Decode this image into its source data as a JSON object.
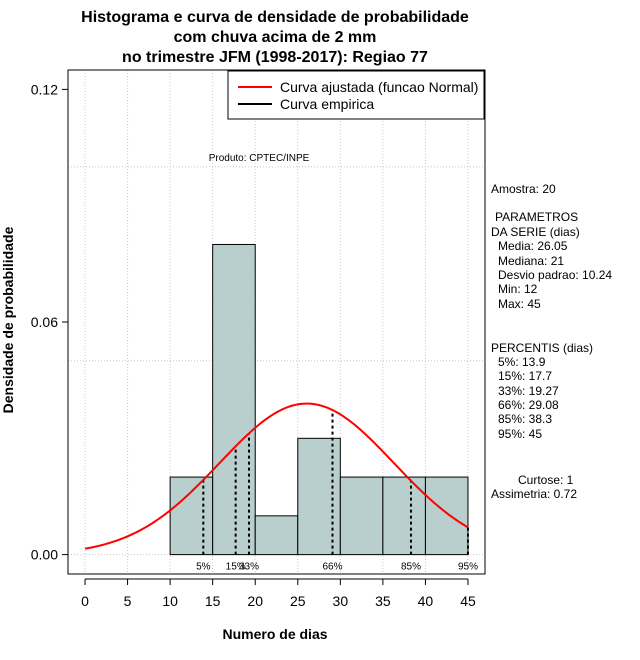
{
  "chart_data": {
    "type": "histogram",
    "title_lines": [
      "Histograma e curva de densidade de probabilidade",
      "com chuva acima de 2 mm",
      "no trimestre JFM (1998-2017): Regiao 77"
    ],
    "xlabel": "Numero de dias",
    "ylabel": "Densidade de probabilidade",
    "xlim": [
      -2,
      47
    ],
    "ylim": [
      -0.005,
      0.125
    ],
    "x_ticks": [
      0,
      5,
      10,
      15,
      20,
      25,
      30,
      35,
      40,
      45
    ],
    "x_tick_labels": [
      "0",
      "5",
      "10",
      "15",
      "20",
      "25",
      "30",
      "35",
      "40",
      "45"
    ],
    "y_ticks": [
      0.0,
      0.06,
      0.12
    ],
    "y_tick_labels": [
      "0.00",
      "0.06",
      "0.12"
    ],
    "grid_y": [
      0.0,
      0.05,
      0.1
    ],
    "bins": [
      {
        "start": 10,
        "end": 15,
        "density": 0.02
      },
      {
        "start": 15,
        "end": 20,
        "density": 0.08
      },
      {
        "start": 20,
        "end": 25,
        "density": 0.01
      },
      {
        "start": 25,
        "end": 30,
        "density": 0.03
      },
      {
        "start": 30,
        "end": 35,
        "density": 0.02
      },
      {
        "start": 35,
        "end": 40,
        "density": 0.02
      },
      {
        "start": 40,
        "end": 45,
        "density": 0.02
      }
    ],
    "normal_curve": {
      "mean": 26.05,
      "sd": 10.24,
      "x_range": [
        0,
        45
      ],
      "color": "#ff0000"
    },
    "percentile_lines": [
      {
        "x": 13.9,
        "label": "5%"
      },
      {
        "x": 17.7,
        "label": "15%"
      },
      {
        "x": 19.27,
        "label": "33%"
      },
      {
        "x": 29.08,
        "label": "66%"
      },
      {
        "x": 38.3,
        "label": "85%"
      },
      {
        "x": 45,
        "label": "95%"
      }
    ],
    "legend": [
      {
        "label": "Curva ajustada (funcao Normal)",
        "color": "#ff0000"
      },
      {
        "label": "Curva empirica",
        "color": "#000000"
      }
    ],
    "legend_position": "top-right",
    "annotation": "Produto: CPTEC/INPE",
    "bar_fill": "#b8cfcd"
  },
  "stats": {
    "amostra": "Amostra: 20",
    "param_title_1": "PARAMETROS",
    "param_title_2": "DA SERIE (dias)",
    "media": "Media: 26.05",
    "mediana": "Mediana: 21",
    "desvio": "Desvio padrao: 10.24",
    "min": "Min: 12",
    "max": "Max: 45",
    "percentis_title": "PERCENTIS (dias)",
    "p5": "5%: 13.9",
    "p15": "15%: 17.7",
    "p33": "33%: 19.27",
    "p66": "66%: 29.08",
    "p85": "85%: 38.3",
    "p95": "95%: 45",
    "curtose": "Curtose: 1",
    "assimetria": "Assimetria: 0.72"
  }
}
